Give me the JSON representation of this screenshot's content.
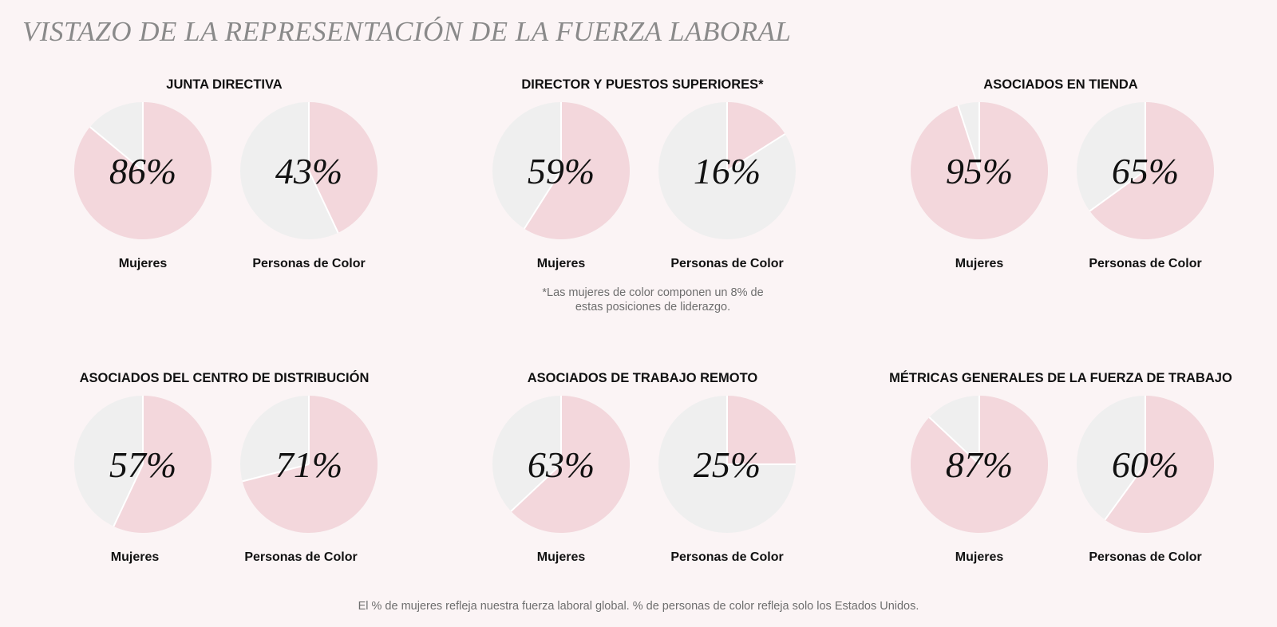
{
  "title": "VISTAZO DE LA REPRESENTACIÓN DE LA FUERZA LABORAL",
  "colors": {
    "pink": "#f3d7dc",
    "gray": "#efefef",
    "background": "#fbf4f5"
  },
  "chart_data": [
    {
      "type": "pie",
      "title": "JUNTA DIRECTIVA",
      "pies": [
        {
          "label": "Mujeres",
          "value": 86,
          "value_text": "86%"
        },
        {
          "label": "Personas de Color",
          "value": 43,
          "value_text": "43%"
        }
      ]
    },
    {
      "type": "pie",
      "title": "DIRECTOR Y PUESTOS SUPERIORES*",
      "pies": [
        {
          "label": "Mujeres",
          "value": 59,
          "value_text": "59%"
        },
        {
          "label": "Personas de Color",
          "value": 16,
          "value_text": "16%"
        }
      ]
    },
    {
      "type": "pie",
      "title": "ASOCIADOS EN TIENDA",
      "pies": [
        {
          "label": "Mujeres",
          "value": 95,
          "value_text": "95%"
        },
        {
          "label": "Personas de Color",
          "value": 65,
          "value_text": "65%"
        }
      ]
    },
    {
      "type": "pie",
      "title": "ASOCIADOS DEL CENTRO DE DISTRIBUCIÓN",
      "pies": [
        {
          "label": "Mujeres",
          "value": 57,
          "value_text": "57%"
        },
        {
          "label": "Personas de Color",
          "value": 71,
          "value_text": "71%"
        }
      ]
    },
    {
      "type": "pie",
      "title": "ASOCIADOS DE TRABAJO REMOTO",
      "pies": [
        {
          "label": "Mujeres",
          "value": 63,
          "value_text": "63%"
        },
        {
          "label": "Personas de Color",
          "value": 25,
          "value_text": "25%"
        }
      ]
    },
    {
      "type": "pie",
      "title": "MÉTRICAS GENERALES DE LA FUERZA DE TRABAJO",
      "pies": [
        {
          "label": "Mujeres",
          "value": 87,
          "value_text": "87%"
        },
        {
          "label": "Personas de Color",
          "value": 60,
          "value_text": "60%"
        }
      ]
    }
  ],
  "note": {
    "line1": "*Las mujeres de color componen un 8% de",
    "line2": "estas posiciones de liderazgo."
  },
  "footnote": "El % de mujeres refleja nuestra fuerza laboral global. % de personas de color refleja solo los Estados Unidos."
}
